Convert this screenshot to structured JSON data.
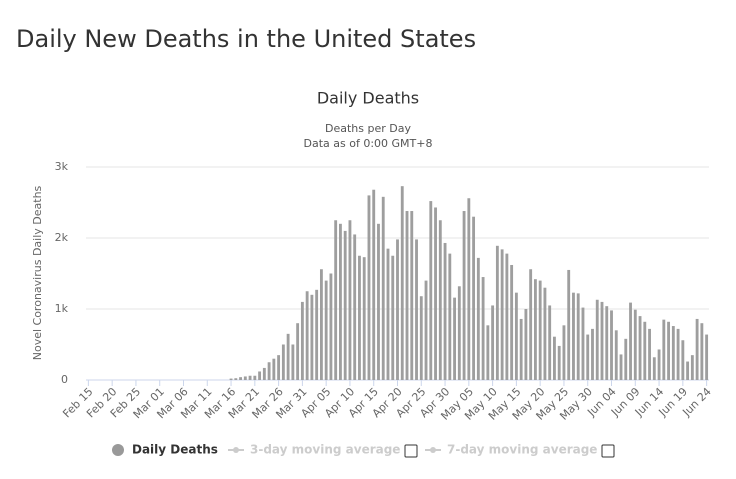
{
  "page_title": "Daily New Deaths in the United States",
  "chart_data": {
    "type": "bar",
    "title": "Daily Deaths",
    "subtitle": [
      "Deaths per Day",
      "Data as of 0:00 GMT+8"
    ],
    "y_label": "Novel Coronavirus Daily Deaths",
    "categories": [
      "Feb 15",
      null,
      null,
      null,
      null,
      "Feb 20",
      null,
      null,
      null,
      null,
      "Feb 25",
      null,
      null,
      null,
      null,
      "Mar 01",
      null,
      null,
      null,
      null,
      "Mar 06",
      null,
      null,
      null,
      null,
      "Mar 11",
      null,
      null,
      null,
      null,
      "Mar 16",
      null,
      null,
      null,
      null,
      "Mar 21",
      null,
      null,
      null,
      null,
      "Mar 26",
      null,
      null,
      null,
      null,
      "Mar 31",
      null,
      null,
      null,
      null,
      "Apr 05",
      null,
      null,
      null,
      null,
      "Apr 10",
      null,
      null,
      null,
      null,
      "Apr 15",
      null,
      null,
      null,
      null,
      "Apr 20",
      null,
      null,
      null,
      null,
      "Apr 25",
      null,
      null,
      null,
      null,
      "Apr 30",
      null,
      null,
      null,
      null,
      "May 05",
      null,
      null,
      null,
      null,
      "May 10",
      null,
      null,
      null,
      null,
      "May 15",
      null,
      null,
      null,
      null,
      "May 20",
      null,
      null,
      null,
      null,
      "May 25",
      null,
      null,
      null,
      null,
      "May 30",
      null,
      null,
      null,
      null,
      "Jun 04",
      null,
      null,
      null,
      null,
      "Jun 09",
      null,
      null,
      null,
      null,
      "Jun 14",
      null,
      null,
      null,
      null,
      "Jun 19",
      null,
      null,
      null,
      null,
      "Jun 24"
    ],
    "series": [
      {
        "name": "Daily Deaths",
        "color": "#9e9e9e",
        "values": [
          0,
          0,
          0,
          0,
          0,
          0,
          0,
          0,
          0,
          0,
          0,
          0,
          0,
          0,
          0,
          0,
          0,
          0,
          0,
          0,
          0,
          0,
          0,
          0,
          0,
          0,
          0,
          0,
          0,
          0,
          20,
          25,
          40,
          50,
          60,
          60,
          120,
          170,
          250,
          300,
          350,
          500,
          650,
          500,
          800,
          1100,
          1250,
          1200,
          1270,
          1560,
          1400,
          1500,
          2250,
          2200,
          2100,
          2250,
          2050,
          1750,
          1730,
          2600,
          2680,
          2200,
          2580,
          1850,
          1750,
          1980,
          2730,
          2380,
          2380,
          1980,
          1180,
          1400,
          2520,
          2430,
          2250,
          1930,
          1780,
          1160,
          1320,
          2380,
          2560,
          2300,
          1720,
          1450,
          770,
          1050,
          1890,
          1840,
          1780,
          1620,
          1230,
          860,
          1000,
          1560,
          1420,
          1400,
          1300,
          1050,
          610,
          480,
          770,
          1550,
          1230,
          1220,
          1020,
          640,
          720,
          1130,
          1100,
          1040,
          980,
          700,
          360,
          580,
          1090,
          990,
          900,
          820,
          720,
          320,
          430,
          850,
          820,
          760,
          720,
          560,
          260,
          350,
          860,
          800,
          640
        ]
      }
    ],
    "legend_items": [
      {
        "name": "Daily Deaths",
        "enabled": true
      },
      {
        "name": "3-day moving average",
        "enabled": false
      },
      {
        "name": "7-day moving average",
        "enabled": false
      }
    ],
    "ylim": [
      0,
      3000
    ],
    "yticks": [
      0,
      {
        "value": 1000,
        "label": "1k"
      },
      {
        "value": 2000,
        "label": "2k"
      },
      {
        "value": 3000,
        "label": "3k"
      }
    ],
    "grid": true
  }
}
